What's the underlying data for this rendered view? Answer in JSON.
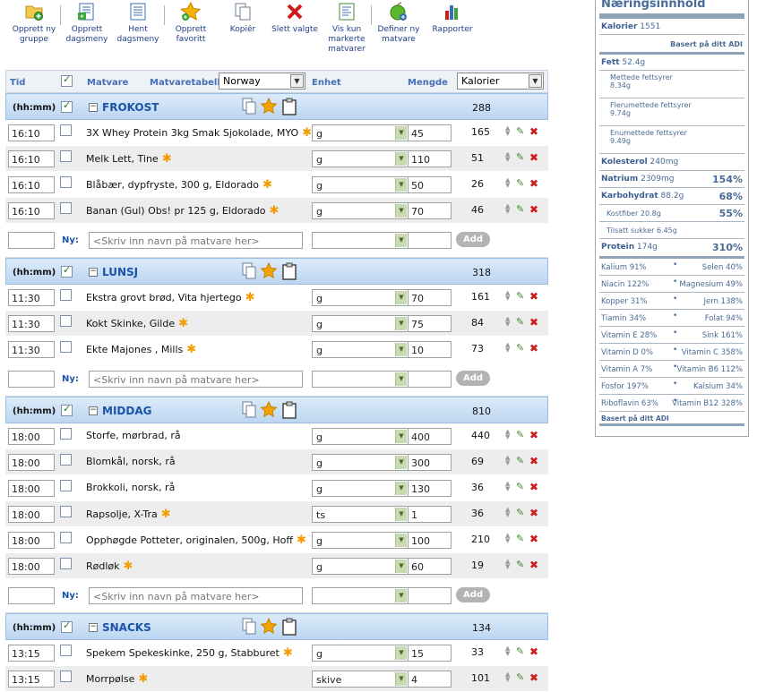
{
  "toolbar": {
    "buttons": [
      {
        "label_1": "Opprett ny",
        "label_2": "gruppe",
        "icon": "folder-add-icon"
      },
      {
        "label_1": "Opprett",
        "label_2": "dagsmeny",
        "icon": "menu-add-icon"
      },
      {
        "label_1": "Hent",
        "label_2": "dagsmeny",
        "icon": "menu-list-icon"
      },
      {
        "label_1": "Opprett",
        "label_2": "favoritt",
        "icon": "star-add-icon"
      },
      {
        "label_1": "Kopiér",
        "label_2": "",
        "icon": "copy-icon"
      },
      {
        "label_1": "Slett valgte",
        "label_2": "",
        "icon": "delete-icon"
      },
      {
        "label_1": "Vis kun",
        "label_2": "markerte",
        "label_3": "matvarer",
        "icon": "list-view-icon"
      },
      {
        "label_1": "Definer ny",
        "label_2": "matvare",
        "icon": "apple-add-icon"
      },
      {
        "label_1": "Rapporter",
        "label_2": "",
        "icon": "bar-chart-icon"
      }
    ]
  },
  "header": {
    "tid": "Tid",
    "matvare": "Matvare",
    "matvaretabell_label": "Matvaretabell:",
    "matvaretabell_value": "Norway",
    "enhet": "Enhet",
    "mengde": "Mengde",
    "kalorier_value": "Kalorier"
  },
  "common": {
    "hhmm": "(hh:mm)",
    "ny_label": "Ny:",
    "search_placeholder": "<Skriv inn navn på matvare her>",
    "add_label": "Add"
  },
  "sections": [
    {
      "name": "FROKOST",
      "kcal": "288",
      "rows": [
        {
          "time": "16:10",
          "food": "3X Whey Protein 3kg Smak Sjokolade, MYO",
          "star": true,
          "unit": "g",
          "qty": "45",
          "kcal": "165"
        },
        {
          "time": "16:10",
          "food": "Melk Lett, Tine",
          "star": true,
          "unit": "g",
          "qty": "110",
          "kcal": "51"
        },
        {
          "time": "16:10",
          "food": "Blåbær, dypfryste, 300 g, Eldorado",
          "star": true,
          "unit": "g",
          "qty": "50",
          "kcal": "26"
        },
        {
          "time": "16:10",
          "food": "Banan (Gul) Obs! pr 125 g, Eldorado",
          "star": true,
          "unit": "g",
          "qty": "70",
          "kcal": "46"
        }
      ]
    },
    {
      "name": "LUNSJ",
      "kcal": "318",
      "rows": [
        {
          "time": "11:30",
          "food": "Ekstra grovt brød, Vita hjertego",
          "star": true,
          "unit": "g",
          "qty": "70",
          "kcal": "161"
        },
        {
          "time": "11:30",
          "food": "Kokt Skinke, Gilde",
          "star": true,
          "unit": "g",
          "qty": "75",
          "kcal": "84"
        },
        {
          "time": "11:30",
          "food": "Ekte Majones , Mills",
          "star": true,
          "unit": "g",
          "qty": "10",
          "kcal": "73"
        }
      ]
    },
    {
      "name": "MIDDAG",
      "kcal": "810",
      "rows": [
        {
          "time": "18:00",
          "food": "Storfe, mørbrad, rå",
          "star": false,
          "unit": "g",
          "qty": "400",
          "kcal": "440"
        },
        {
          "time": "18:00",
          "food": "Blomkål, norsk, rå",
          "star": false,
          "unit": "g",
          "qty": "300",
          "kcal": "69"
        },
        {
          "time": "18:00",
          "food": "Brokkoli, norsk, rå",
          "star": false,
          "unit": "g",
          "qty": "130",
          "kcal": "36"
        },
        {
          "time": "18:00",
          "food": "Rapsolje, X-Tra",
          "star": true,
          "unit": "ts",
          "qty": "1",
          "kcal": "36"
        },
        {
          "time": "18:00",
          "food": "Opphøgde Potteter, originalen, 500g, Hoff",
          "star": true,
          "unit": "g",
          "qty": "100",
          "kcal": "210"
        },
        {
          "time": "18:00",
          "food": "Rødløk",
          "star": true,
          "unit": "g",
          "qty": "60",
          "kcal": "19"
        }
      ]
    },
    {
      "name": "SNACKS",
      "kcal": "134",
      "rows": [
        {
          "time": "13:15",
          "food": "Spekem Spekeskinke, 250 g, Stabburet",
          "star": true,
          "unit": "g",
          "qty": "15",
          "kcal": "33"
        },
        {
          "time": "13:15",
          "food": "Morrpølse",
          "star": true,
          "unit": "skive",
          "qty": "4",
          "kcal": "101"
        }
      ]
    }
  ],
  "nutrition": {
    "title": "Næringsinnhold",
    "kalorier_label": "Kalorier",
    "kalorier_value": "1551",
    "basis": "Basert på ditt ADI",
    "fett_label": "Fett",
    "fett_value": "52.4g",
    "mettede_label": "Mettede fettsyrer",
    "mettede_value": "8.34g",
    "flerum_label": "Flerumettede fettsyrer",
    "flerum_value": "9.74g",
    "enum_label": "Enumettede fettsyrer",
    "enum_value": "9.49g",
    "kolesterol_label": "Kolesterol",
    "kolesterol_value": "240mg",
    "natrium_label": "Natrium",
    "natrium_value": "2309mg",
    "natrium_pct": "154%",
    "karbo_label": "Karbohydrat",
    "karbo_value": "88.2g",
    "karbo_pct": "68%",
    "kostfiber_label": "Kostfiber",
    "kostfiber_value": "20.8g",
    "kostfiber_pct": "55%",
    "sukker_label": "Tilsatt sukker",
    "sukker_value": "6.45g",
    "protein_label": "Protein",
    "protein_value": "174g",
    "protein_pct": "310%",
    "pairs": [
      {
        "left": "Kalium 91%",
        "right": "Selen 40%"
      },
      {
        "left": "Niacin 122%",
        "right": "Magnesium 49%"
      },
      {
        "left": "Kopper 31%",
        "right": "Jern 138%"
      },
      {
        "left": "Tiamin 34%",
        "right": "Folat 94%"
      },
      {
        "left": "Vitamin E 28%",
        "right": "Sink 161%"
      },
      {
        "left": "Vitamin D 0%",
        "right": "Vitamin C 358%"
      },
      {
        "left": "Vitamin A 7%",
        "right": "Vitamin B6 112%"
      },
      {
        "left": "Fosfor 197%",
        "right": "Kalsium 34%"
      },
      {
        "left": "Riboflavin 63%",
        "right": "Vitamin B12 328%"
      }
    ],
    "footer": "Basert på ditt ADI"
  }
}
